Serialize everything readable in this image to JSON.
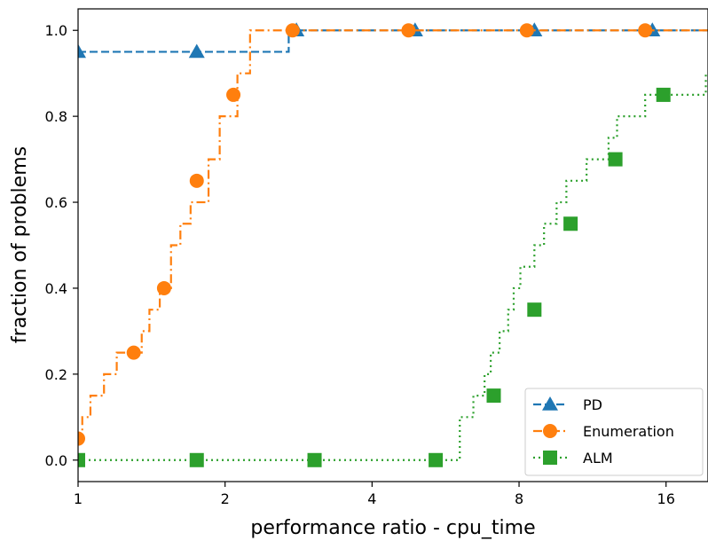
{
  "chart_data": {
    "type": "line",
    "title": "",
    "xlabel": "performance ratio - cpu_time",
    "ylabel": "fraction of problems",
    "x_scale": "log2",
    "xlim": [
      1,
      19.5
    ],
    "ylim": [
      -0.05,
      1.05
    ],
    "x_ticks": [
      1,
      2,
      4,
      8,
      16
    ],
    "x_tick_labels": [
      "1",
      "2",
      "4",
      "8",
      "16"
    ],
    "y_ticks": [
      0.0,
      0.2,
      0.4,
      0.6,
      0.8,
      1.0
    ],
    "y_tick_labels": [
      "0.0",
      "0.2",
      "0.4",
      "0.6",
      "0.8",
      "1.0"
    ],
    "grid": false,
    "legend_position": "bottom-right",
    "step": "post",
    "series": [
      {
        "name": "PD",
        "color": "#1f77b4",
        "linestyle": "dashed",
        "marker": "triangle",
        "x": [
          1.0,
          2.7,
          19.5
        ],
        "y": [
          0.95,
          1.0,
          1.0
        ],
        "marker_x": [
          1.0,
          1.75,
          2.8,
          4.9,
          8.6,
          15.0
        ],
        "marker_y": [
          0.95,
          0.95,
          1.0,
          1.0,
          1.0,
          1.0
        ]
      },
      {
        "name": "Enumeration",
        "color": "#ff7f0e",
        "linestyle": "dashdot",
        "marker": "circle",
        "x": [
          1.0,
          1.02,
          1.06,
          1.13,
          1.2,
          1.35,
          1.4,
          1.47,
          1.55,
          1.62,
          1.7,
          1.85,
          1.95,
          2.12,
          2.25,
          19.5
        ],
        "y": [
          0.05,
          0.1,
          0.15,
          0.2,
          0.25,
          0.3,
          0.35,
          0.4,
          0.5,
          0.55,
          0.6,
          0.7,
          0.8,
          0.9,
          1.0,
          1.0
        ],
        "marker_x": [
          1.0,
          1.3,
          1.5,
          1.75,
          2.08,
          2.75,
          4.75,
          8.3,
          14.5
        ],
        "marker_y": [
          0.05,
          0.25,
          0.4,
          0.65,
          0.85,
          1.0,
          1.0,
          1.0,
          1.0
        ]
      },
      {
        "name": "ALM",
        "color": "#2ca02c",
        "linestyle": "dotted",
        "marker": "square",
        "x": [
          1.0,
          6.05,
          6.45,
          6.8,
          7.0,
          7.3,
          7.6,
          7.8,
          8.05,
          8.6,
          9.0,
          9.55,
          10.0,
          11.0,
          12.2,
          12.7,
          13.3,
          14.5,
          15.5,
          19.3
        ],
        "y": [
          0.0,
          0.1,
          0.15,
          0.2,
          0.25,
          0.3,
          0.35,
          0.4,
          0.45,
          0.5,
          0.55,
          0.6,
          0.65,
          0.7,
          0.75,
          0.8,
          0.8,
          0.85,
          0.85,
          0.9
        ],
        "marker_x": [
          1.0,
          1.75,
          3.05,
          5.4,
          7.1,
          8.6,
          10.2,
          12.6,
          15.8
        ],
        "marker_y": [
          0.0,
          0.0,
          0.0,
          0.0,
          0.15,
          0.35,
          0.55,
          0.7,
          0.85
        ]
      }
    ]
  }
}
